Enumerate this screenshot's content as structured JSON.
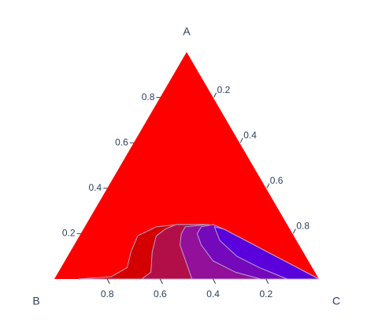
{
  "chart_data": {
    "type": "ternary-contour",
    "line_color": "#b9a3c9",
    "axes": {
      "a": {
        "title": "A",
        "ticks": [
          0.2,
          0.4,
          0.6,
          0.8
        ]
      },
      "b": {
        "title": "B",
        "ticks": [
          0.2,
          0.4,
          0.6,
          0.8
        ]
      },
      "c": {
        "title": "C",
        "ticks": [
          0.2,
          0.4,
          0.6,
          0.8
        ]
      }
    },
    "regions": [
      {
        "color": "#ff0000",
        "a": [
          1,
          0,
          0
        ],
        "b": [
          0,
          1,
          0
        ]
      },
      {
        "color": "#d40000",
        "a": [
          0,
          0.01,
          0.05,
          0.12,
          0.19,
          0.23,
          0.24,
          0.24,
          0.22,
          0
        ],
        "b": [
          0.91,
          0.78,
          0.7,
          0.65,
          0.59,
          0.5,
          0.41,
          0.31,
          0.25,
          0
        ]
      },
      {
        "color": "#b20f48",
        "a": [
          0,
          0.03,
          0.12,
          0.19,
          0.22,
          0.24,
          0.24,
          0.22,
          0
        ],
        "b": [
          0.67,
          0.62,
          0.57,
          0.52,
          0.47,
          0.42,
          0.3,
          0.25,
          0
        ]
      },
      {
        "color": "#92109a",
        "a": [
          0,
          0.05,
          0.15,
          0.2,
          0.23,
          0.24,
          0.22,
          0
        ],
        "b": [
          0.48,
          0.47,
          0.45,
          0.42,
          0.39,
          0.3,
          0.25,
          0
        ]
      },
      {
        "color": "#7408bb",
        "a": [
          0,
          0.03,
          0.08,
          0.15,
          0.2,
          0.23,
          0.24,
          0.22,
          0
        ],
        "b": [
          0.22,
          0.3,
          0.36,
          0.37,
          0.36,
          0.33,
          0.28,
          0.25,
          0
        ]
      },
      {
        "color": "#5a00dc",
        "a": [
          0,
          0.05,
          0.1,
          0.17,
          0.23,
          0.22,
          0
        ],
        "b": [
          0.12,
          0.2,
          0.26,
          0.29,
          0.28,
          0.25,
          0
        ]
      }
    ]
  }
}
